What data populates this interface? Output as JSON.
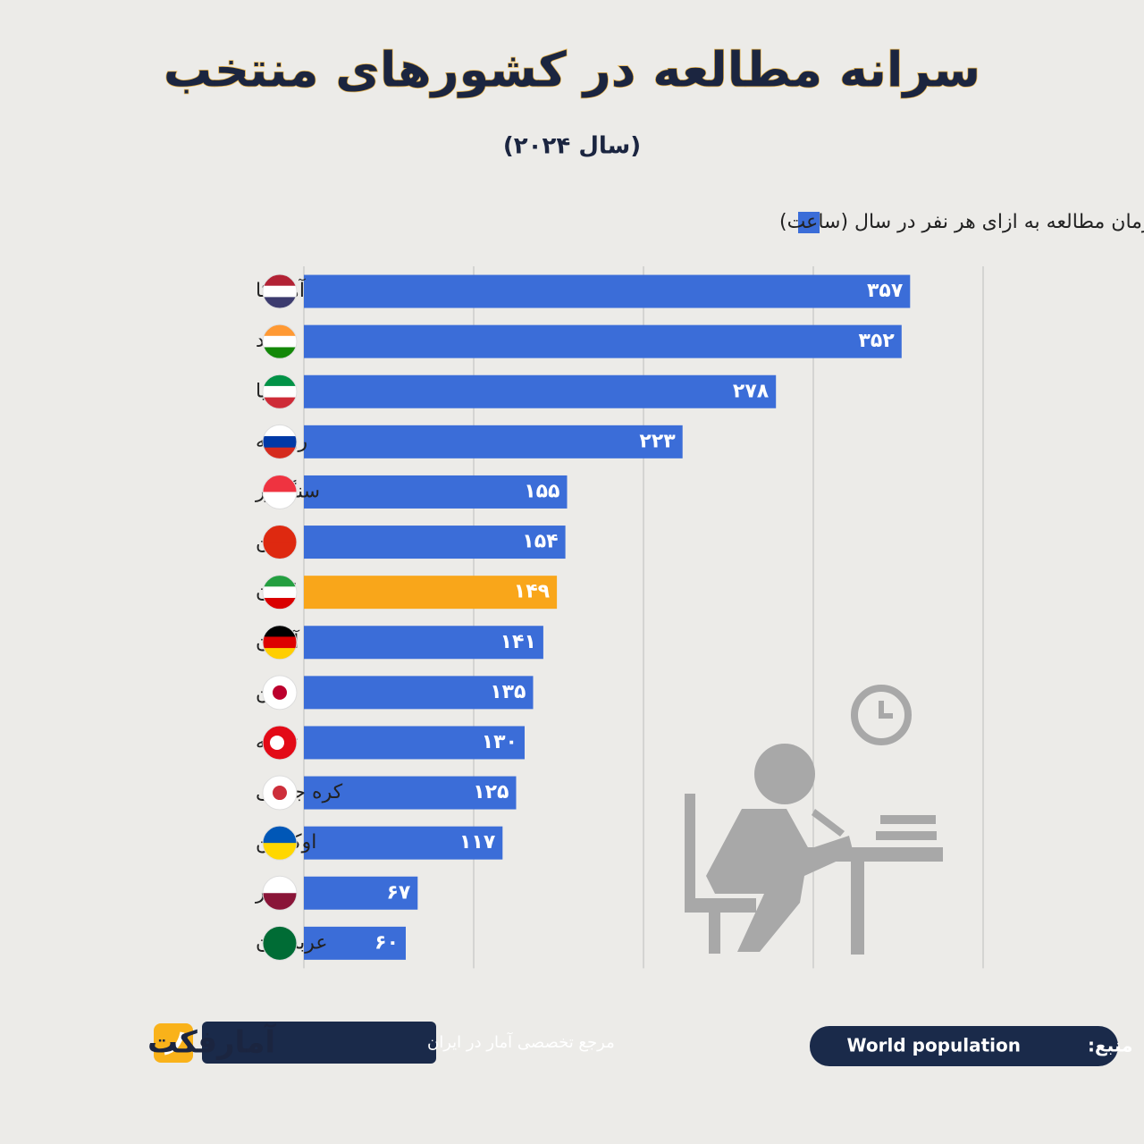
{
  "chart_data": {
    "type": "hbar",
    "title": "سرانه مطالعه در کشورهای منتخب",
    "subtitle": "(سال ۲۰۲۴)",
    "legend_label": "زمان مطالعه به ازای هر نفر در سال (ساعت)",
    "categories": [
      "آمریکا",
      "هند",
      "ایتالیا",
      "روسیه",
      "سنگاپور",
      "چین",
      "ایران",
      "آلمان",
      "ژاپن",
      "ترکیه",
      "کره جنوبی",
      "اوکراین",
      "قطر",
      "عربستان"
    ],
    "values": [
      357,
      352,
      278,
      223,
      155,
      154,
      149,
      141,
      135,
      130,
      125,
      117,
      67,
      60
    ],
    "value_labels": [
      "۳۵۷",
      "۳۵۲",
      "۲۷۸",
      "۲۲۳",
      "۱۵۵",
      "۱۵۴",
      "۱۴۹",
      "۱۴۱",
      "۱۳۵",
      "۱۳۰",
      "۱۲۵",
      "۱۱۷",
      "۶۷",
      "۶۰"
    ],
    "color": "#3b6dd8",
    "colors": [
      "#3b6dd8",
      "#3b6dd8",
      "#3b6dd8",
      "#3b6dd8",
      "#3b6dd8",
      "#3b6dd8",
      "#f9a61a",
      "#3b6dd8",
      "#3b6dd8",
      "#3b6dd8",
      "#3b6dd8",
      "#3b6dd8",
      "#3b6dd8",
      "#3b6dd8"
    ],
    "xlim": [
      0,
      400
    ],
    "xticks": [
      0,
      100,
      200,
      300,
      400
    ],
    "grid": true
  },
  "footer": {
    "source_label": "منبع:",
    "source": "World population",
    "tagline": "مرجع تخصصی آمار در ایران",
    "logo": "آمارفکت"
  }
}
